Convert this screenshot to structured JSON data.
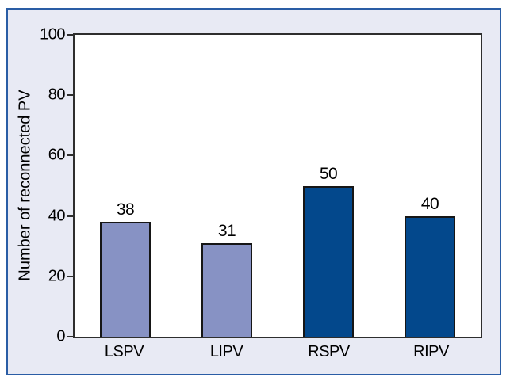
{
  "figure": {
    "frame_border_color": "#2a5da5",
    "frame_background": "#e8eaf4",
    "plot_background": "#ffffff",
    "axis_color": "#2e2e2e"
  },
  "chart_data": {
    "type": "bar",
    "categories": [
      "LSPV",
      "LIPV",
      "RSPV",
      "RIPV"
    ],
    "values": [
      38,
      31,
      50,
      40
    ],
    "bar_colors": [
      "#8792c4",
      "#8792c4",
      "#03488c",
      "#03488c"
    ],
    "title": "",
    "xlabel": "",
    "ylabel": "Number of reconnected PV",
    "ylim": [
      0,
      100
    ],
    "yticks": [
      0,
      20,
      40,
      60,
      80,
      100
    ],
    "grid": false,
    "legend": false,
    "data_labels_shown": true
  }
}
